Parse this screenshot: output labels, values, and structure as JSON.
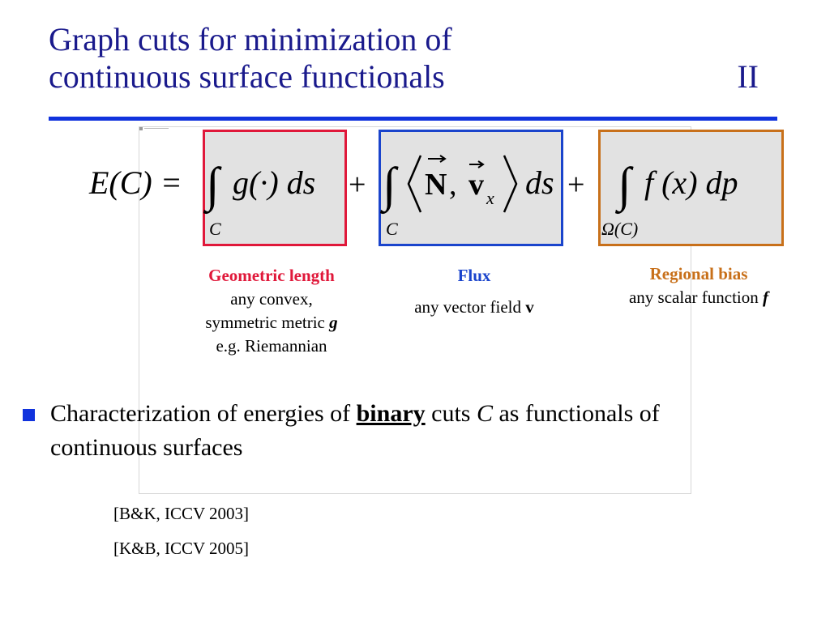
{
  "slide": {
    "title_line1": "Graph cuts for minimization of",
    "title_line2": "continuous surface functionals",
    "section_number": "II",
    "accent_color": "#1133dd",
    "title_color": "#1a1a8c"
  },
  "formula": {
    "lhs": "E(C) =",
    "term1": "g(·) ds",
    "term1_sub": "C",
    "term2_N": "N",
    "term2_v": "v",
    "term2_v_sub": "x",
    "term2_ds": "ds",
    "term2_sub": "C",
    "term3": "f (x) dp",
    "term3_sub": "Ω(C)",
    "plus": "+",
    "integral": "∫"
  },
  "terms": {
    "geometric": {
      "title": "Geometric length",
      "line1": "any convex,",
      "line2_text": "symmetric metric ",
      "line2_sym": "g",
      "line3": "e.g. Riemannian",
      "color": "#e0183a"
    },
    "flux": {
      "title": "Flux",
      "body_text": "any vector field ",
      "body_sym": "v",
      "color": "#1a44cc"
    },
    "regional": {
      "title": "Regional bias",
      "body_text": "any scalar function ",
      "body_sym": "f",
      "color": "#c8701a"
    }
  },
  "bullet": {
    "text_before": "Characterization of energies of ",
    "emphasis": "binary",
    "text_mid": " cuts ",
    "var": "C",
    "text_after": " as functionals of continuous surfaces"
  },
  "references": [
    "[B&K, ICCV 2003]",
    "[K&B, ICCV 2005]"
  ]
}
